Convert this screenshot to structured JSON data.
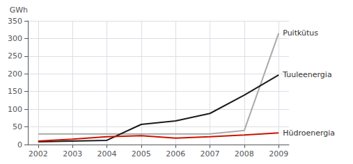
{
  "chart_data": {
    "type": "line",
    "y_label": "GWh",
    "x": [
      2002,
      2003,
      2004,
      2005,
      2006,
      2007,
      2008,
      2009
    ],
    "series": [
      {
        "name": "Puitkütus",
        "color": "#aaaaaa",
        "values": [
          30,
          30,
          30,
          30,
          30,
          30,
          40,
          315
        ]
      },
      {
        "name": "Tuuleenergia",
        "color": "#1a1a1a",
        "values": [
          8,
          10,
          12,
          57,
          67,
          88,
          140,
          197
        ]
      },
      {
        "name": "Hüdroenergia",
        "color": "#cc1100",
        "values": [
          10,
          15,
          22,
          25,
          18,
          22,
          27,
          33
        ]
      }
    ],
    "xlim": [
      2001.7,
      2009.3
    ],
    "xticks": [
      2002,
      2003,
      2004,
      2005,
      2006,
      2007,
      2008,
      2009
    ],
    "ylim": [
      0,
      350
    ],
    "yticks": [
      0,
      50,
      100,
      150,
      200,
      250,
      300,
      350
    ],
    "grid": true
  }
}
